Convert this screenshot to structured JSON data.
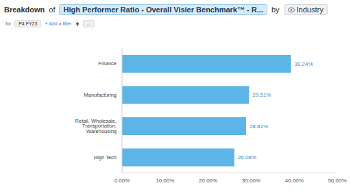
{
  "chart_data": {
    "type": "bar",
    "orientation": "horizontal",
    "title": [
      "Breakdown",
      "of",
      "High Performer Ratio - Overall Visier Benchmark™ - R...",
      "by",
      "Industry"
    ],
    "annotations": [
      "for",
      "P4 FY23",
      "+ Add a filter",
      "..."
    ],
    "categories": [
      "Finance",
      "Manufacturing",
      "Retail, Wholesale, Transportation, Warehousing",
      "High Tech"
    ],
    "values": [
      39.24,
      29.51,
      28.81,
      26.08
    ],
    "value_labels": [
      "39.24%",
      "29.51%",
      "28.81%",
      "26.08%"
    ],
    "data_labels": true,
    "color": "#5db4e6",
    "xlim": [
      0,
      50
    ],
    "xticks": [
      {
        "value": 0,
        "label": "0.00%"
      },
      {
        "value": 10,
        "label": "10.00%"
      },
      {
        "value": 20,
        "label": "20.00%"
      },
      {
        "value": 30,
        "label": "30.00%"
      },
      {
        "value": 40,
        "label": "40.00%"
      },
      {
        "value": 50,
        "label": "50.00%"
      }
    ],
    "grid": false
  }
}
